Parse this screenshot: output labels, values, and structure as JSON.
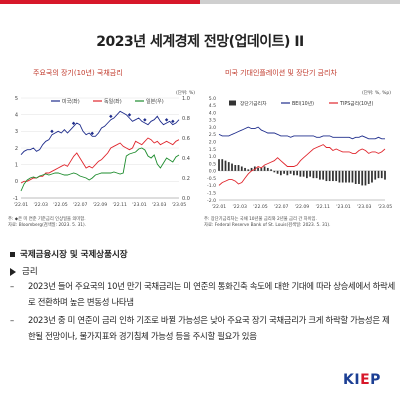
{
  "page": {
    "title": "2023년 세계경제 전망(업데이트) II",
    "section_heading": "국제금융시장 및 국제상품시장",
    "subheading": "금리",
    "bullets": [
      "2023년 들어 주요국의 10년 만기 국채금리는 미 연준의 통화긴축 속도에 대한 기대에 따라 상승세에서 하락세로 전환하며 높은 변동성 나타냄",
      "2023년 중 미 연준이 금리 인하 기조로 바뀔 가능성은 낮아 주요국 장기 국채금리가 크게 하락할 가능성은 제한될 전망이나, 물가지표와 경기침체 가능성 등을 주시할 필요가 있음"
    ],
    "logo_prefix": "KI",
    "logo_accent": "E",
    "logo_suffix": "P",
    "colors": {
      "accent_red": "#d7182a",
      "logo_blue": "#1c3f94",
      "bar_gray": "#cfcfcf"
    }
  },
  "chart_data": [
    {
      "type": "line",
      "title": "주요국의 장기(10년) 국채금리",
      "unit_label": "(단위: %)",
      "xlabel": "",
      "ylabel": "",
      "ylim": [
        -1,
        5
      ],
      "yticks": [
        -1,
        0,
        1,
        2,
        3,
        4,
        5
      ],
      "x_ticks": [
        "'22.01",
        "'22.03",
        "'22.05",
        "'22.07",
        "'22.09",
        "'22.11",
        "'23.01",
        "'23.03",
        "'23.05"
      ],
      "grid": true,
      "legend_position": "top-center",
      "note_lines": [
        "주: ◆은 미 연준 기준금리 인상일을 의미함.",
        "자료: Bloomberg(검색일: 2023. 5. 31)."
      ],
      "series": [
        {
          "name": "미국(좌)",
          "axis": "left",
          "color": "#1f2d8c",
          "values": [
            1.6,
            1.8,
            1.9,
            1.9,
            2.0,
            1.8,
            1.9,
            2.2,
            2.4,
            2.5,
            2.8,
            2.9,
            3.0,
            2.9,
            3.1,
            2.9,
            3.1,
            3.3,
            3.5,
            3.4,
            3.0,
            2.8,
            2.9,
            2.7,
            2.7,
            2.9,
            3.2,
            3.3,
            3.5,
            3.7,
            3.8,
            4.0,
            4.2,
            4.1,
            4.0,
            3.8,
            3.6,
            3.7,
            3.8,
            3.6,
            3.5,
            3.4,
            3.6,
            3.7,
            3.9,
            3.6,
            3.4,
            3.5,
            3.6,
            3.4,
            3.5,
            3.7
          ]
        },
        {
          "name": "독일(좌)",
          "axis": "left",
          "color": "#e0262d",
          "values": [
            -0.1,
            0.0,
            0.0,
            0.1,
            0.2,
            0.2,
            0.3,
            0.3,
            0.5,
            0.5,
            0.6,
            0.7,
            0.8,
            0.9,
            1.0,
            0.9,
            1.2,
            1.5,
            1.7,
            1.4,
            1.1,
            0.8,
            0.9,
            0.8,
            1.0,
            1.2,
            1.3,
            1.5,
            1.7,
            2.0,
            2.1,
            2.2,
            2.3,
            2.1,
            2.0,
            1.9,
            2.0,
            2.4,
            2.3,
            2.2,
            2.4,
            2.6,
            2.5,
            2.3,
            2.4,
            2.2,
            2.3,
            2.4,
            2.3,
            2.2,
            2.4,
            2.5
          ]
        },
        {
          "name": "일본(우)",
          "axis": "right",
          "color": "#1e8c2e",
          "ylim": [
            0,
            1
          ],
          "yticks": [
            0.0,
            0.2,
            0.4,
            0.6,
            0.8,
            1.0
          ],
          "values": [
            0.07,
            0.14,
            0.18,
            0.2,
            0.21,
            0.2,
            0.22,
            0.23,
            0.24,
            0.23,
            0.24,
            0.25,
            0.25,
            0.24,
            0.23,
            0.23,
            0.24,
            0.25,
            0.24,
            0.22,
            0.21,
            0.2,
            0.18,
            0.2,
            0.23,
            0.24,
            0.25,
            0.25,
            0.25,
            0.25,
            0.26,
            0.25,
            0.24,
            0.25,
            0.42,
            0.44,
            0.45,
            0.46,
            0.49,
            0.5,
            0.48,
            0.42,
            0.4,
            0.43,
            0.34,
            0.3,
            0.35,
            0.4,
            0.38,
            0.36,
            0.41,
            0.43
          ]
        }
      ],
      "marker_label": "◆",
      "markers_x_index": [
        10,
        17,
        23,
        29,
        35,
        40,
        47,
        49
      ]
    },
    {
      "type": "bar+line",
      "title": "미국 기대인플레이션 및 장단기 금리차",
      "unit_label": "(단위: %, %p)",
      "xlabel": "",
      "ylabel": "",
      "ylim": [
        -2.0,
        5.0
      ],
      "yticks": [
        -2.0,
        -1.5,
        -1.0,
        -0.5,
        0.0,
        0.5,
        1.0,
        1.5,
        2.0,
        2.5,
        3.0,
        3.5,
        4.0,
        4.5,
        5.0
      ],
      "x_ticks": [
        "'22.01",
        "'22.03",
        "'22.05",
        "'22.07",
        "'22.09",
        "'22.11",
        "'23.01",
        "'23.03",
        "'23.05"
      ],
      "grid": false,
      "legend_position": "top",
      "note_lines": [
        "주: 장단기금리차는 국채 10년물 금리와 2년물 금리 간 차이임.",
        "자료: Federal Reserve Bank of St. Louis(검색일: 2023. 5. 31)."
      ],
      "series": [
        {
          "name": "장단기금리차",
          "kind": "bar",
          "color": "#333333",
          "values": [
            0.8,
            0.8,
            0.7,
            0.6,
            0.5,
            0.4,
            0.4,
            0.3,
            0.2,
            0.1,
            0.2,
            0.3,
            0.2,
            0.2,
            0.3,
            0.2,
            0.1,
            -0.1,
            -0.2,
            -0.3,
            -0.2,
            -0.3,
            -0.2,
            -0.3,
            -0.3,
            -0.4,
            -0.4,
            -0.5,
            -0.4,
            -0.5,
            -0.5,
            -0.6,
            -0.6,
            -0.7,
            -0.7,
            -0.7,
            -0.7,
            -0.8,
            -0.8,
            -0.8,
            -0.8,
            -0.8,
            -0.9,
            -0.9,
            -1.0,
            -1.0,
            -0.9,
            -0.8,
            -0.6,
            -0.5,
            -0.5,
            -0.6
          ]
        },
        {
          "name": "BEI(10년)",
          "kind": "line",
          "color": "#1f2d8c",
          "values": [
            2.5,
            2.4,
            2.4,
            2.4,
            2.5,
            2.6,
            2.7,
            2.8,
            2.9,
            3.0,
            2.9,
            2.9,
            3.0,
            2.8,
            2.7,
            2.6,
            2.6,
            2.6,
            2.5,
            2.4,
            2.4,
            2.4,
            2.3,
            2.4,
            2.4,
            2.4,
            2.4,
            2.4,
            2.4,
            2.4,
            2.3,
            2.3,
            2.4,
            2.4,
            2.4,
            2.3,
            2.3,
            2.3,
            2.3,
            2.3,
            2.3,
            2.2,
            2.3,
            2.3,
            2.4,
            2.3,
            2.2,
            2.2,
            2.2,
            2.3,
            2.2,
            2.2
          ]
        },
        {
          "name": "TIPS금리(10년)",
          "kind": "line",
          "color": "#e0262d",
          "values": [
            -1.0,
            -0.8,
            -0.7,
            -0.6,
            -0.6,
            -0.7,
            -0.9,
            -0.8,
            -0.5,
            -0.2,
            0.0,
            0.1,
            0.3,
            0.2,
            0.4,
            0.5,
            0.6,
            0.7,
            0.9,
            0.7,
            0.5,
            0.3,
            0.3,
            0.3,
            0.4,
            0.7,
            0.9,
            1.1,
            1.3,
            1.5,
            1.6,
            1.7,
            1.8,
            1.6,
            1.6,
            1.4,
            1.5,
            1.4,
            1.3,
            1.3,
            1.3,
            1.2,
            1.2,
            1.4,
            1.5,
            1.4,
            1.2,
            1.3,
            1.3,
            1.2,
            1.3,
            1.5
          ]
        }
      ]
    }
  ]
}
